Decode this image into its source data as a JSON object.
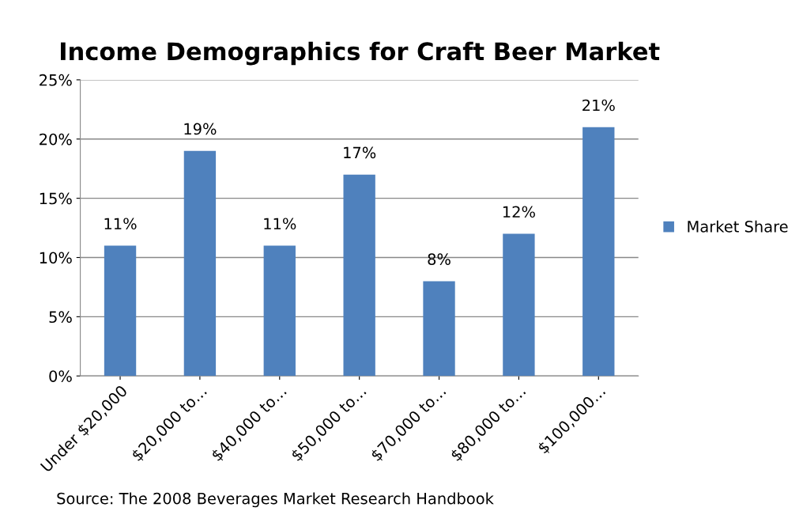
{
  "chart_data": {
    "type": "bar",
    "title": "Income Demographics for Craft Beer Market",
    "categories": [
      "Under $20,000",
      "$20,000 to…",
      "$40,000 to…",
      "$50,000 to…",
      "$70,000 to…",
      "$80,000 to…",
      "$100,000…"
    ],
    "series": [
      {
        "name": "Market Share",
        "color": "#4f81bd",
        "values": [
          11,
          19,
          11,
          17,
          8,
          12,
          21
        ],
        "value_labels": [
          "11%",
          "19%",
          "11%",
          "17%",
          "8%",
          "12%",
          "21%"
        ]
      }
    ],
    "ylim": [
      0,
      25
    ],
    "yticks": [
      {
        "value": 0,
        "label": "0%"
      },
      {
        "value": 5,
        "label": "5%"
      },
      {
        "value": 10,
        "label": "10%"
      },
      {
        "value": 15,
        "label": "15%"
      },
      {
        "value": 20,
        "label": "20%"
      },
      {
        "value": 25,
        "label": "25%"
      }
    ],
    "grid": "y",
    "legend": "right",
    "annotations": [
      "Source: The 2008 Beverages Market Research Handbook"
    ]
  }
}
